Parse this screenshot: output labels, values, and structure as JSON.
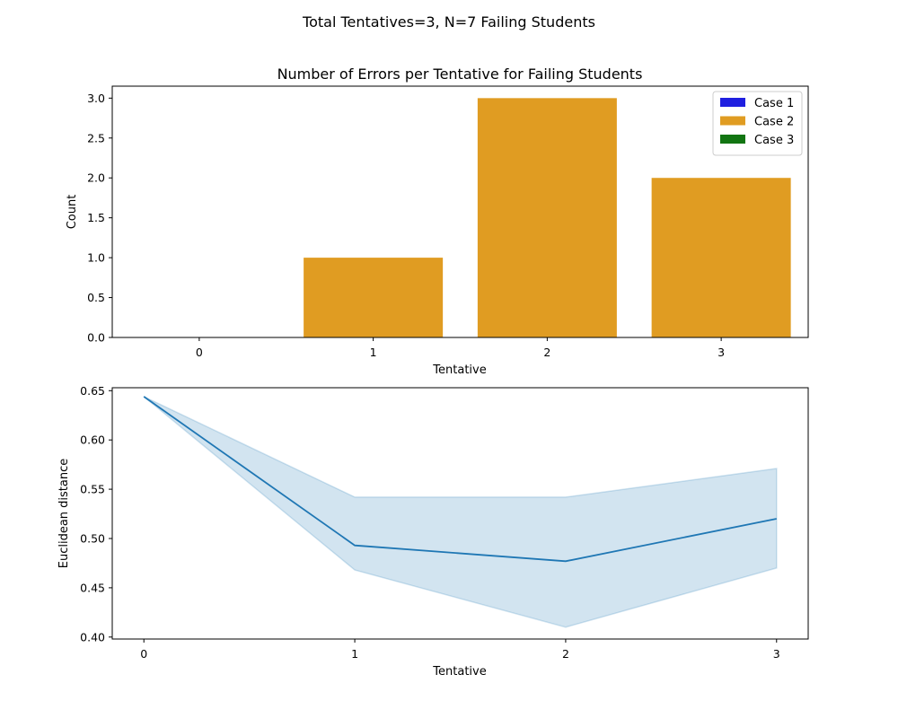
{
  "suptitle": "Total Tentatives=3, N=7 Failing Students",
  "colors": {
    "case1": "#1f1fe0",
    "case2": "#e09c22",
    "case3": "#127512",
    "line": "#1f77b4",
    "band": "#1f77b4"
  },
  "chart_data": [
    {
      "type": "bar",
      "title": "Number of Errors per Tentative for Failing Students",
      "xlabel": "Tentative",
      "ylabel": "Count",
      "categories": [
        "0",
        "1",
        "2",
        "3"
      ],
      "series": [
        {
          "name": "Case 1",
          "values": [
            0,
            0,
            0,
            0
          ]
        },
        {
          "name": "Case 2",
          "values": [
            0,
            1,
            3,
            2
          ]
        },
        {
          "name": "Case 3",
          "values": [
            0,
            0,
            0,
            0
          ]
        }
      ],
      "ylim": [
        0,
        3.15
      ],
      "yticks": [
        "0.0",
        "0.5",
        "1.0",
        "1.5",
        "2.0",
        "2.5",
        "3.0"
      ],
      "legend": "top-right",
      "grid": false
    },
    {
      "type": "line",
      "xlabel": "Tentative",
      "ylabel": "Euclidean distance",
      "x": [
        0,
        1,
        2,
        3
      ],
      "y": [
        0.644,
        0.493,
        0.477,
        0.52
      ],
      "ci_lower": [
        0.644,
        0.468,
        0.41,
        0.47
      ],
      "ci_upper": [
        0.644,
        0.542,
        0.542,
        0.571
      ],
      "xlim": [
        -0.15,
        3.15
      ],
      "ylim": [
        0.398,
        0.653
      ],
      "xticks": [
        "0",
        "1",
        "2",
        "3"
      ],
      "yticks": [
        "0.40",
        "0.45",
        "0.50",
        "0.55",
        "0.60",
        "0.65"
      ],
      "grid": false
    }
  ]
}
